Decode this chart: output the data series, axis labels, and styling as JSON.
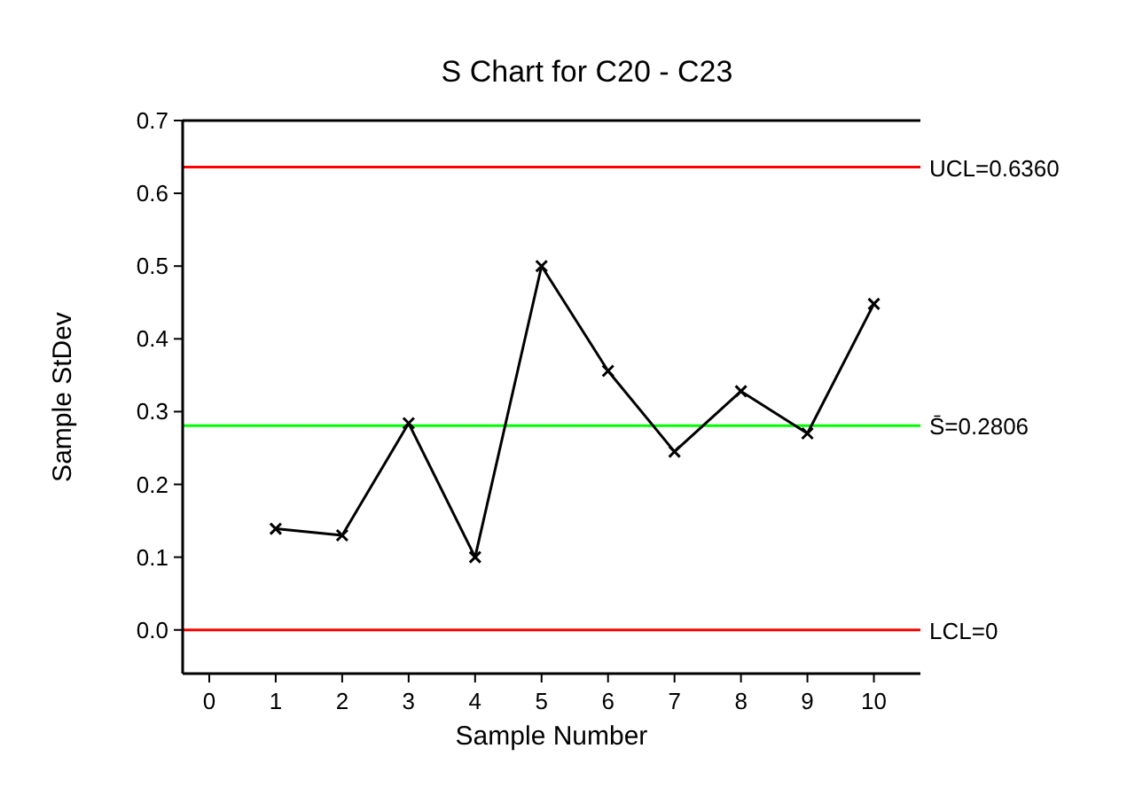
{
  "chart_data": {
    "type": "line",
    "title": "S Chart for C20 - C23",
    "xlabel": "Sample Number",
    "ylabel": "Sample StDev",
    "x": [
      1,
      2,
      3,
      4,
      5,
      6,
      7,
      8,
      9,
      10
    ],
    "series": [
      {
        "color": "#000000",
        "values": [
          0.139,
          0.13,
          0.284,
          0.1,
          0.5,
          0.356,
          0.245,
          0.328,
          0.27,
          0.448
        ]
      }
    ],
    "marker": "cross",
    "line_style": "solid",
    "xlim": [
      -0.4,
      10.7
    ],
    "xticks": [
      0,
      1,
      2,
      3,
      4,
      5,
      6,
      7,
      8,
      9,
      10
    ],
    "ylim": [
      -0.06,
      0.7
    ],
    "yticks": [
      {
        "value": 0,
        "label": "0.0"
      },
      0.1,
      0.2,
      0.3,
      0.4,
      0.5,
      0.6,
      0.7
    ],
    "ref_lines": [
      {
        "axis": "y",
        "value": 0.636,
        "label": "UCL=0.6360",
        "color": "#ff0000"
      },
      {
        "axis": "y",
        "value": 0.2806,
        "label": "S̄=0.2806",
        "color": "#00ff00"
      },
      {
        "axis": "y",
        "value": 0,
        "label": "LCL=0",
        "color": "#ff0000"
      }
    ],
    "grid": false
  }
}
